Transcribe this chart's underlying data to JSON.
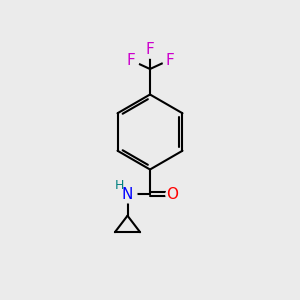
{
  "bg_color": "#ebebeb",
  "bond_color": "#000000",
  "N_color": "#0000ff",
  "O_color": "#ff0000",
  "F_color": "#cc00cc",
  "H_color": "#008080",
  "line_width": 1.5,
  "figsize": [
    3.0,
    3.0
  ],
  "dpi": 100,
  "xlim": [
    0,
    10
  ],
  "ylim": [
    0,
    10
  ]
}
